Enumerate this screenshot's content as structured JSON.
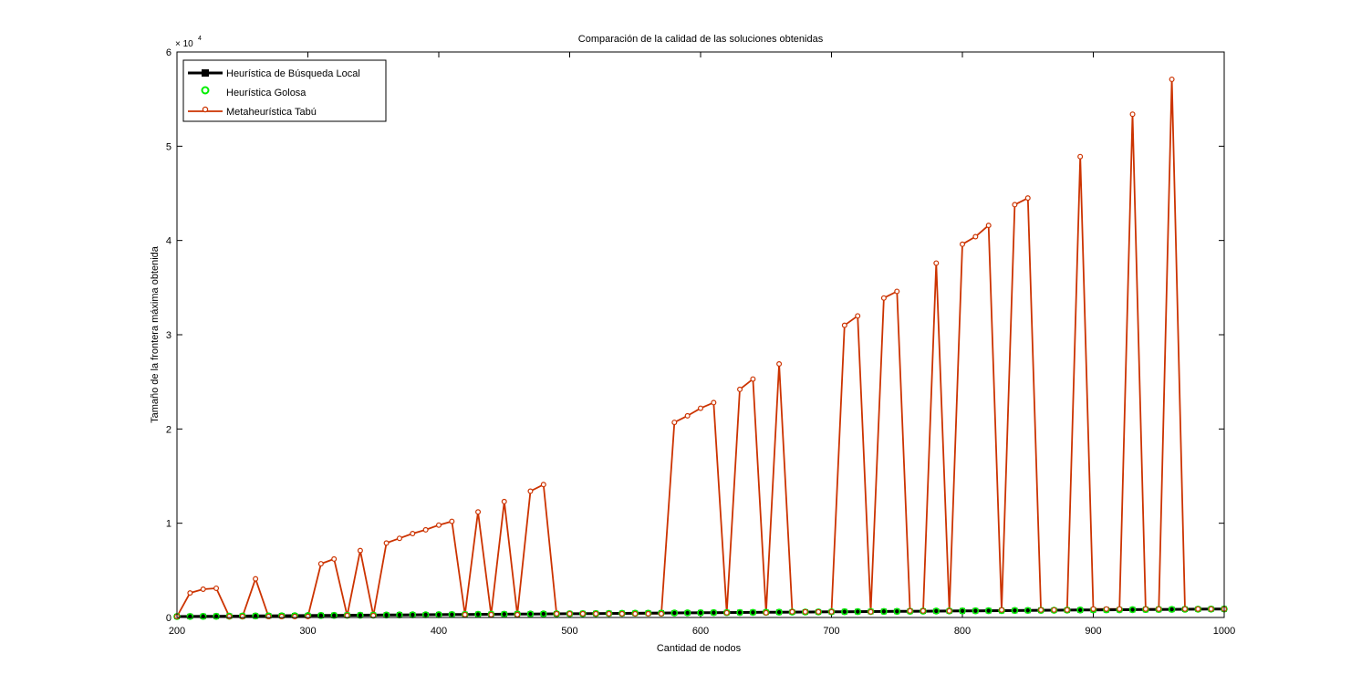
{
  "chart_data": {
    "type": "line",
    "title": "Comparación de la calidad de las soluciones obtenidas",
    "xlabel": "Cantidad de nodos",
    "ylabel": "Tamaño de la frontera máxima obtenida",
    "xlim": [
      200,
      1000
    ],
    "ylim": [
      0,
      60000
    ],
    "y_exponent_label": "× 10",
    "y_exponent_power": "4",
    "xticks": [
      200,
      300,
      400,
      500,
      600,
      700,
      800,
      900,
      1000
    ],
    "yticks": [
      0,
      10000,
      20000,
      30000,
      40000,
      50000,
      60000
    ],
    "xtick_labels": [
      "200",
      "300",
      "400",
      "500",
      "600",
      "700",
      "800",
      "900",
      "1000"
    ],
    "ytick_labels": [
      "0",
      "1",
      "2",
      "3",
      "4",
      "5",
      "6"
    ],
    "grid": false,
    "legend_position": "top-left",
    "x": [
      200,
      210,
      220,
      230,
      240,
      250,
      260,
      270,
      280,
      290,
      300,
      310,
      320,
      330,
      340,
      350,
      360,
      370,
      380,
      390,
      400,
      410,
      420,
      430,
      440,
      450,
      460,
      470,
      480,
      490,
      500,
      510,
      520,
      530,
      540,
      550,
      560,
      570,
      580,
      590,
      600,
      610,
      620,
      630,
      640,
      650,
      660,
      670,
      680,
      690,
      700,
      710,
      720,
      730,
      740,
      750,
      760,
      770,
      780,
      790,
      800,
      810,
      820,
      830,
      840,
      850,
      860,
      870,
      880,
      890,
      900,
      910,
      920,
      930,
      940,
      950,
      960,
      970,
      980,
      990,
      1000
    ],
    "series": [
      {
        "name": "Heurística de Búsqueda Local",
        "color": "#000000",
        "marker": "square",
        "values": [
          100,
          110,
          120,
          130,
          140,
          150,
          160,
          170,
          180,
          190,
          200,
          210,
          220,
          230,
          240,
          250,
          260,
          270,
          280,
          290,
          300,
          310,
          320,
          330,
          340,
          350,
          360,
          370,
          380,
          390,
          400,
          410,
          420,
          430,
          440,
          450,
          460,
          470,
          480,
          490,
          500,
          510,
          520,
          530,
          540,
          550,
          560,
          570,
          580,
          590,
          600,
          610,
          620,
          630,
          640,
          650,
          660,
          670,
          680,
          690,
          700,
          710,
          720,
          730,
          740,
          750,
          760,
          770,
          780,
          790,
          800,
          810,
          820,
          830,
          840,
          850,
          860,
          870,
          880,
          890,
          900
        ]
      },
      {
        "name": "Heurística Golosa",
        "color": "#00ee00",
        "marker": "circle",
        "values": [
          100,
          110,
          120,
          130,
          140,
          150,
          160,
          170,
          180,
          190,
          200,
          210,
          220,
          230,
          240,
          250,
          260,
          270,
          280,
          290,
          300,
          310,
          320,
          330,
          340,
          350,
          360,
          370,
          380,
          390,
          400,
          410,
          420,
          430,
          440,
          450,
          460,
          470,
          480,
          490,
          500,
          510,
          520,
          530,
          540,
          550,
          560,
          570,
          580,
          590,
          600,
          610,
          620,
          630,
          640,
          650,
          660,
          670,
          680,
          690,
          700,
          710,
          720,
          730,
          740,
          750,
          760,
          770,
          780,
          790,
          800,
          810,
          820,
          830,
          840,
          850,
          860,
          870,
          880,
          890,
          900
        ]
      },
      {
        "name": "Metaheurística Tabú",
        "color": "#cc3300",
        "marker": "circle",
        "values": [
          100,
          2600,
          3000,
          3100,
          100,
          100,
          4100,
          100,
          100,
          100,
          100,
          5700,
          6200,
          200,
          7100,
          200,
          7900,
          8400,
          8900,
          9300,
          9800,
          10200,
          300,
          11200,
          300,
          12300,
          300,
          13400,
          14100,
          400,
          400,
          400,
          400,
          400,
          400,
          400,
          400,
          400,
          20700,
          21400,
          22200,
          22800,
          500,
          24200,
          25300,
          500,
          26900,
          600,
          600,
          600,
          600,
          31000,
          32000,
          600,
          33900,
          34600,
          700,
          700,
          37600,
          700,
          39600,
          40400,
          41600,
          800,
          43800,
          44500,
          800,
          800,
          800,
          48900,
          900,
          900,
          900,
          53400,
          900,
          900,
          57100,
          900,
          900,
          900,
          900
        ]
      }
    ]
  }
}
